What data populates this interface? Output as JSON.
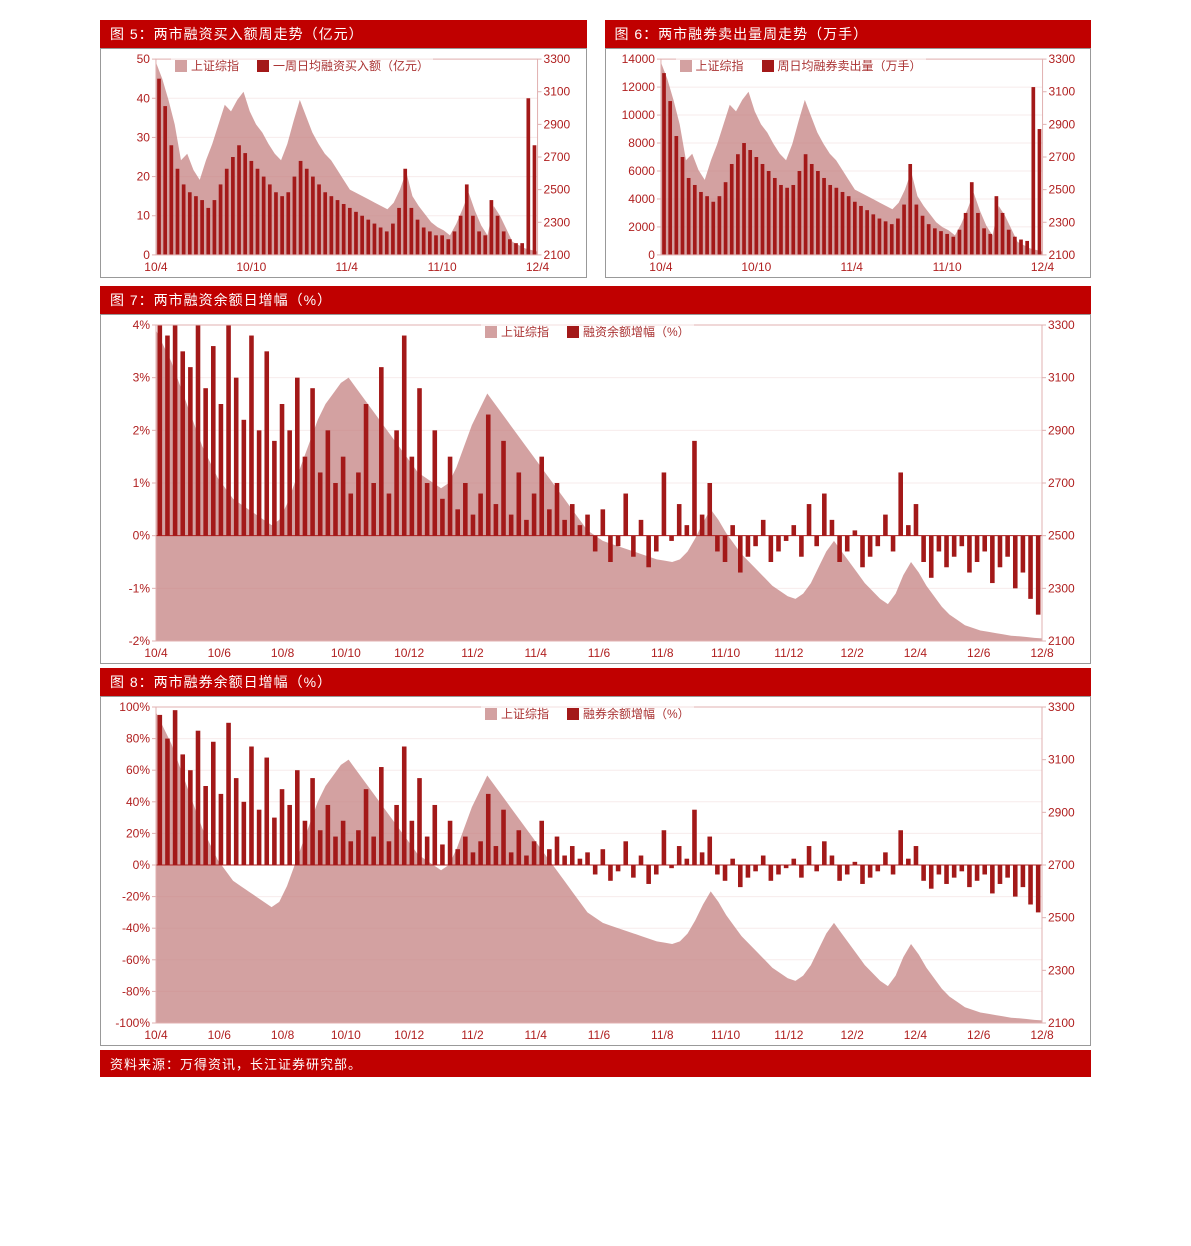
{
  "colors": {
    "title_bg": "#c00000",
    "title_text": "#ffffff",
    "frame_border": "#999999",
    "area_fill": "#c48282",
    "area_fill_opacity": 0.75,
    "bar_fill": "#a31919",
    "axis_text": "#b02020",
    "grid": "#e0b0b0",
    "zero_line": "#b02020"
  },
  "footer": "资料来源：万得资讯，长江证券研究部。",
  "chart5": {
    "title": "图 5：两市融资买入额周走势（亿元）",
    "legend_area": "上证综指",
    "legend_bar": "一周日均融资买入额（亿元）",
    "left_axis": {
      "min": 0,
      "max": 50,
      "ticks": [
        0,
        10,
        20,
        30,
        40,
        50
      ]
    },
    "right_axis": {
      "min": 2100,
      "max": 3300,
      "ticks": [
        2100,
        2300,
        2500,
        2700,
        2900,
        3100,
        3300
      ]
    },
    "x_labels": [
      "10/4",
      "10/10",
      "11/4",
      "11/10",
      "12/4"
    ],
    "area_series": [
      3280,
      3180,
      3050,
      2900,
      2680,
      2720,
      2620,
      2560,
      2680,
      2780,
      2900,
      3020,
      2980,
      3050,
      3100,
      2980,
      2900,
      2850,
      2780,
      2720,
      2680,
      2780,
      2920,
      3050,
      2950,
      2850,
      2780,
      2720,
      2680,
      2620,
      2560,
      2500,
      2480,
      2460,
      2440,
      2420,
      2400,
      2380,
      2420,
      2500,
      2610,
      2460,
      2400,
      2350,
      2300,
      2270,
      2250,
      2220,
      2290,
      2380,
      2480,
      2370,
      2280,
      2220,
      2400,
      2340,
      2260,
      2180,
      2160,
      2140,
      2130,
      2120
    ],
    "bar_series": [
      45,
      38,
      28,
      22,
      18,
      16,
      15,
      14,
      12,
      14,
      18,
      22,
      25,
      28,
      26,
      24,
      22,
      20,
      18,
      16,
      15,
      16,
      20,
      24,
      22,
      20,
      18,
      16,
      15,
      14,
      13,
      12,
      11,
      10,
      9,
      8,
      7,
      6,
      8,
      12,
      22,
      12,
      9,
      7,
      6,
      5,
      5,
      4,
      6,
      10,
      18,
      10,
      6,
      5,
      14,
      10,
      6,
      4,
      3,
      3,
      40,
      28
    ]
  },
  "chart6": {
    "title": "图 6：两市融券卖出量周走势（万手）",
    "legend_area": "上证综指",
    "legend_bar": "周日均融券卖出量（万手）",
    "left_axis": {
      "min": 0,
      "max": 14000,
      "ticks": [
        0,
        2000,
        4000,
        6000,
        8000,
        10000,
        12000,
        14000
      ]
    },
    "right_axis": {
      "min": 2100,
      "max": 3300,
      "ticks": [
        2100,
        2300,
        2500,
        2700,
        2900,
        3100,
        3300
      ]
    },
    "x_labels": [
      "10/4",
      "10/10",
      "11/4",
      "11/10",
      "12/4"
    ],
    "area_series": [
      3280,
      3180,
      3050,
      2900,
      2680,
      2720,
      2620,
      2560,
      2680,
      2780,
      2900,
      3020,
      2980,
      3050,
      3100,
      2980,
      2900,
      2850,
      2780,
      2720,
      2680,
      2780,
      2920,
      3050,
      2950,
      2850,
      2780,
      2720,
      2680,
      2620,
      2560,
      2500,
      2480,
      2460,
      2440,
      2420,
      2400,
      2380,
      2420,
      2500,
      2610,
      2460,
      2400,
      2350,
      2300,
      2270,
      2250,
      2220,
      2290,
      2380,
      2480,
      2370,
      2280,
      2220,
      2400,
      2340,
      2260,
      2180,
      2160,
      2140,
      2130,
      2120
    ],
    "bar_series": [
      13000,
      11000,
      8500,
      7000,
      5500,
      5000,
      4500,
      4200,
      3800,
      4200,
      5200,
      6500,
      7200,
      8000,
      7500,
      7000,
      6500,
      6000,
      5500,
      5000,
      4800,
      5000,
      6000,
      7200,
      6500,
      6000,
      5500,
      5000,
      4800,
      4500,
      4200,
      3800,
      3500,
      3200,
      2900,
      2600,
      2400,
      2200,
      2600,
      3600,
      6500,
      3600,
      2800,
      2200,
      1900,
      1700,
      1500,
      1300,
      1800,
      3000,
      5200,
      3000,
      1900,
      1500,
      4200,
      3000,
      1800,
      1300,
      1100,
      1000,
      12000,
      9000
    ]
  },
  "chart7": {
    "title": "图 7：两市融资余额日增幅（%）",
    "legend_area": "上证综指",
    "legend_bar": "融资余额增幅（%）",
    "left_axis": {
      "min": -2,
      "max": 4,
      "ticks": [
        -2,
        -1,
        0,
        1,
        2,
        3,
        4
      ],
      "format": "percent_int"
    },
    "right_axis": {
      "min": 2100,
      "max": 3300,
      "ticks": [
        2100,
        2300,
        2500,
        2700,
        2900,
        3100,
        3300
      ]
    },
    "x_labels": [
      "10/4",
      "10/6",
      "10/8",
      "10/10",
      "10/12",
      "11/2",
      "11/4",
      "11/6",
      "11/8",
      "11/10",
      "11/12",
      "12/2",
      "12/4",
      "12/6",
      "12/8"
    ],
    "area_series": [
      3280,
      3220,
      3160,
      3080,
      3000,
      2920,
      2840,
      2780,
      2720,
      2680,
      2640,
      2620,
      2600,
      2580,
      2560,
      2540,
      2560,
      2620,
      2700,
      2780,
      2860,
      2940,
      3000,
      3040,
      3080,
      3100,
      3060,
      3020,
      2980,
      2940,
      2900,
      2860,
      2820,
      2780,
      2740,
      2720,
      2700,
      2680,
      2700,
      2760,
      2840,
      2920,
      2980,
      3040,
      3000,
      2960,
      2920,
      2880,
      2840,
      2800,
      2760,
      2720,
      2680,
      2640,
      2600,
      2560,
      2520,
      2500,
      2480,
      2470,
      2460,
      2450,
      2440,
      2430,
      2420,
      2410,
      2405,
      2400,
      2410,
      2440,
      2490,
      2550,
      2600,
      2560,
      2510,
      2470,
      2430,
      2400,
      2370,
      2340,
      2310,
      2290,
      2270,
      2260,
      2280,
      2320,
      2380,
      2440,
      2480,
      2440,
      2400,
      2360,
      2320,
      2290,
      2260,
      2240,
      2280,
      2350,
      2400,
      2360,
      2310,
      2270,
      2230,
      2200,
      2180,
      2160,
      2150,
      2140,
      2135,
      2130,
      2125,
      2120,
      2118,
      2115,
      2112,
      2110
    ],
    "bar_series": [
      4,
      3.8,
      4,
      3.5,
      3.2,
      4,
      2.8,
      3.6,
      2.5,
      4,
      3,
      2.2,
      3.8,
      2,
      3.5,
      1.8,
      2.5,
      2,
      3,
      1.5,
      2.8,
      1.2,
      2,
      1,
      1.5,
      0.8,
      1.2,
      2.5,
      1,
      3.2,
      0.8,
      2,
      3.8,
      1.5,
      2.8,
      1,
      2,
      0.7,
      1.5,
      0.5,
      1,
      0.4,
      0.8,
      2.3,
      0.6,
      1.8,
      0.4,
      1.2,
      0.3,
      0.8,
      1.5,
      0.5,
      1,
      0.3,
      0.6,
      0.2,
      0.4,
      -0.3,
      0.5,
      -0.5,
      -0.2,
      0.8,
      -0.4,
      0.3,
      -0.6,
      -0.3,
      1.2,
      -0.1,
      0.6,
      0.2,
      1.8,
      0.4,
      1,
      -0.3,
      -0.5,
      0.2,
      -0.7,
      -0.4,
      -0.2,
      0.3,
      -0.5,
      -0.3,
      -0.1,
      0.2,
      -0.4,
      0.6,
      -0.2,
      0.8,
      0.3,
      -0.5,
      -0.3,
      0.1,
      -0.6,
      -0.4,
      -0.2,
      0.4,
      -0.3,
      1.2,
      0.2,
      0.6,
      -0.5,
      -0.8,
      -0.3,
      -0.6,
      -0.4,
      -0.2,
      -0.7,
      -0.5,
      -0.3,
      -0.9,
      -0.6,
      -0.4,
      -1,
      -0.7,
      -1.2,
      -1.5
    ]
  },
  "chart8": {
    "title": "图 8：两市融券余额日增幅（%）",
    "legend_area": "上证综指",
    "legend_bar": "融券余额增幅（%）",
    "left_axis": {
      "min": -100,
      "max": 100,
      "ticks": [
        -100,
        -80,
        -60,
        -40,
        -20,
        0,
        20,
        40,
        60,
        80,
        100
      ],
      "format": "percent_int"
    },
    "right_axis": {
      "min": 2100,
      "max": 3300,
      "ticks": [
        2100,
        2300,
        2500,
        2700,
        2900,
        3100,
        3300
      ]
    },
    "x_labels": [
      "10/4",
      "10/6",
      "10/8",
      "10/10",
      "10/12",
      "11/2",
      "11/4",
      "11/6",
      "11/8",
      "11/10",
      "11/12",
      "12/2",
      "12/4",
      "12/6",
      "12/8"
    ],
    "area_series": [
      3280,
      3220,
      3160,
      3080,
      3000,
      2920,
      2840,
      2780,
      2720,
      2680,
      2640,
      2620,
      2600,
      2580,
      2560,
      2540,
      2560,
      2620,
      2700,
      2780,
      2860,
      2940,
      3000,
      3040,
      3080,
      3100,
      3060,
      3020,
      2980,
      2940,
      2900,
      2860,
      2820,
      2780,
      2740,
      2720,
      2700,
      2680,
      2700,
      2760,
      2840,
      2920,
      2980,
      3040,
      3000,
      2960,
      2920,
      2880,
      2840,
      2800,
      2760,
      2720,
      2680,
      2640,
      2600,
      2560,
      2520,
      2500,
      2480,
      2470,
      2460,
      2450,
      2440,
      2430,
      2420,
      2410,
      2405,
      2400,
      2410,
      2440,
      2490,
      2550,
      2600,
      2560,
      2510,
      2470,
      2430,
      2400,
      2370,
      2340,
      2310,
      2290,
      2270,
      2260,
      2280,
      2320,
      2380,
      2440,
      2480,
      2440,
      2400,
      2360,
      2320,
      2290,
      2260,
      2240,
      2280,
      2350,
      2400,
      2360,
      2310,
      2270,
      2230,
      2200,
      2180,
      2160,
      2150,
      2140,
      2135,
      2130,
      2125,
      2120,
      2118,
      2115,
      2112,
      2110
    ],
    "bar_series": [
      95,
      80,
      98,
      70,
      60,
      85,
      50,
      78,
      45,
      90,
      55,
      40,
      75,
      35,
      68,
      30,
      48,
      38,
      60,
      28,
      55,
      22,
      38,
      18,
      28,
      15,
      22,
      48,
      18,
      62,
      15,
      38,
      75,
      28,
      55,
      18,
      38,
      13,
      28,
      10,
      18,
      8,
      15,
      45,
      12,
      35,
      8,
      22,
      6,
      15,
      28,
      10,
      18,
      6,
      12,
      4,
      8,
      -6,
      10,
      -10,
      -4,
      15,
      -8,
      6,
      -12,
      -6,
      22,
      -2,
      12,
      4,
      35,
      8,
      18,
      -6,
      -10,
      4,
      -14,
      -8,
      -4,
      6,
      -10,
      -6,
      -2,
      4,
      -8,
      12,
      -4,
      15,
      6,
      -10,
      -6,
      2,
      -12,
      -8,
      -4,
      8,
      -6,
      22,
      4,
      12,
      -10,
      -15,
      -6,
      -12,
      -8,
      -4,
      -14,
      -10,
      -6,
      -18,
      -12,
      -8,
      -20,
      -14,
      -25,
      -30
    ]
  }
}
